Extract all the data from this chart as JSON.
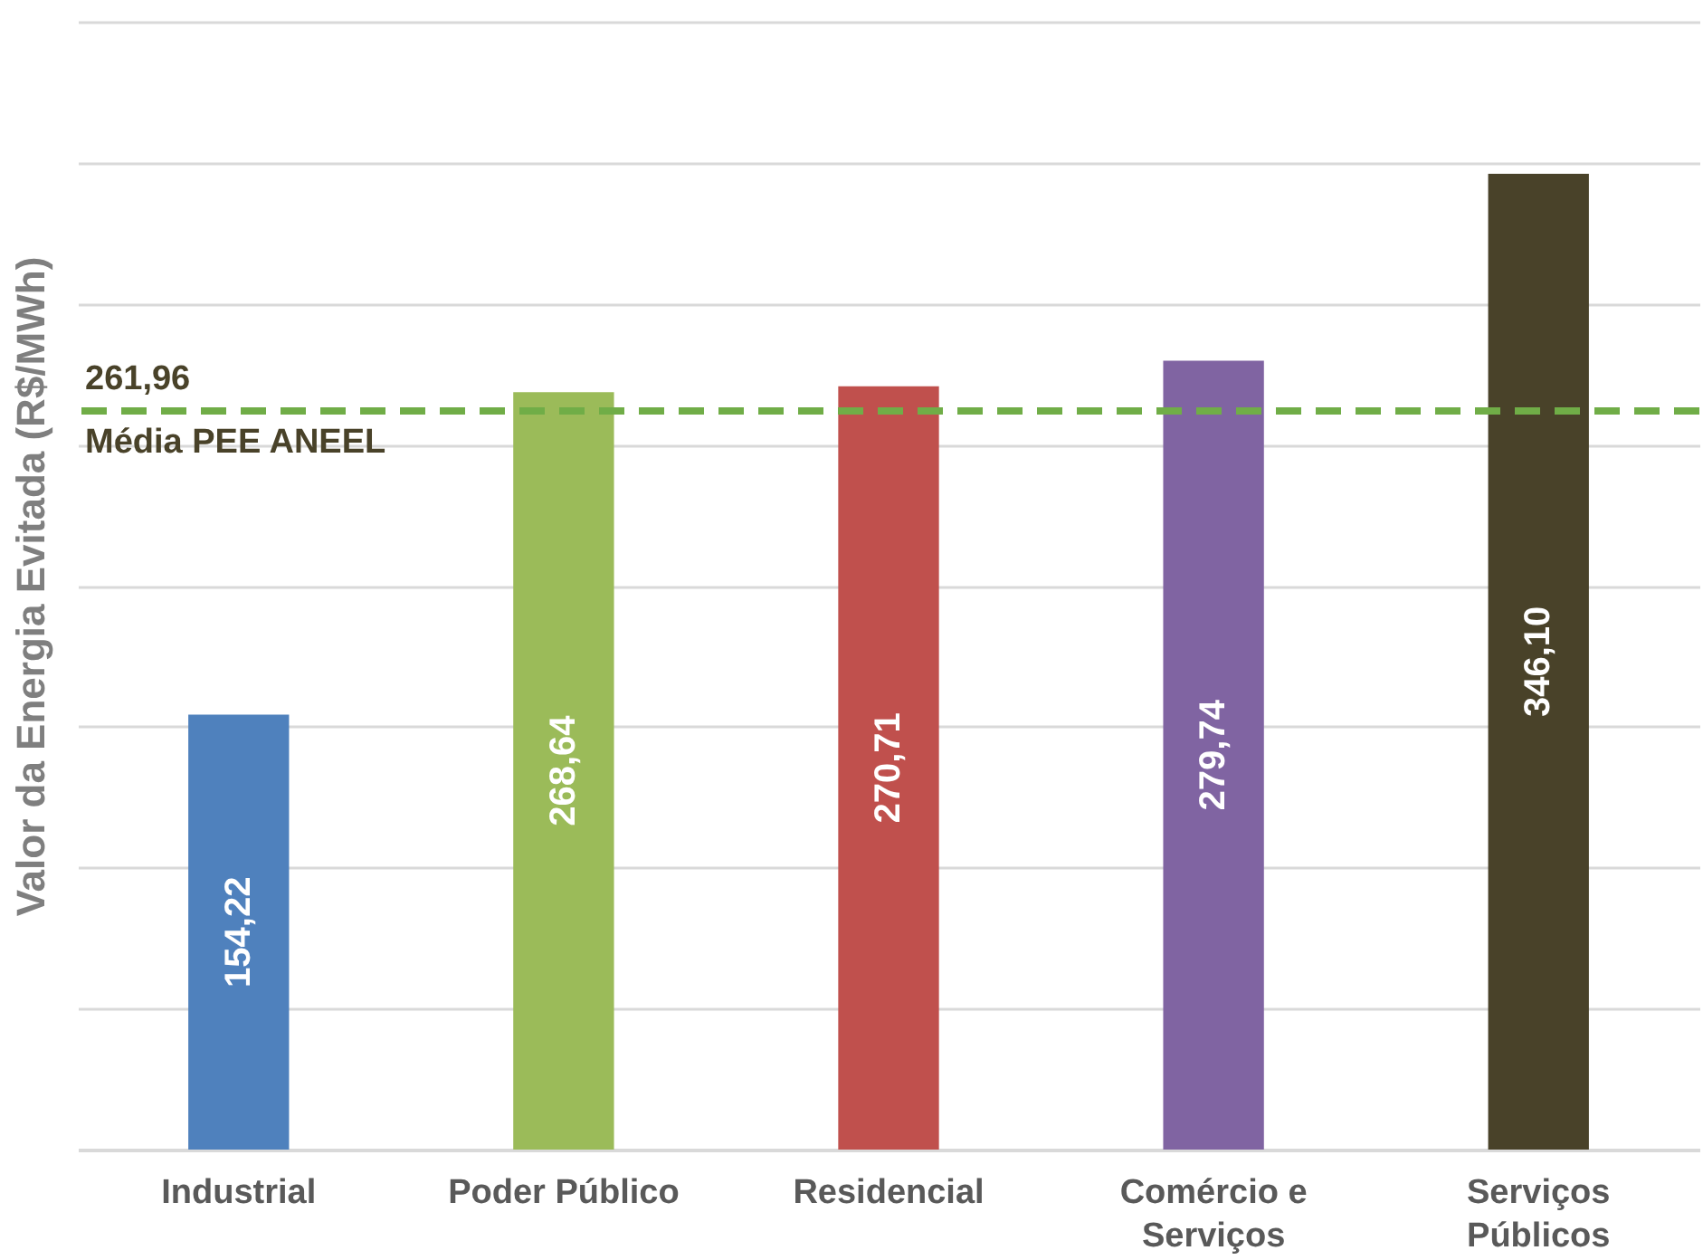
{
  "chart_data": {
    "type": "bar",
    "ylabel": "Valor da Energia Evitada (R$/MWh)",
    "categories": [
      "Industrial",
      "Poder Público",
      "Residencial",
      "Comércio e Serviços",
      "Serviços Públicos"
    ],
    "values": [
      154.22,
      268.64,
      270.71,
      279.74,
      346.1
    ],
    "value_labels": [
      "154,22",
      "268,64",
      "270,71",
      "279,74",
      "346,10"
    ],
    "colors": [
      "#4f81bd",
      "#9bbb59",
      "#c0504d",
      "#8064a2",
      "#494229"
    ],
    "ylim": [
      0,
      400
    ],
    "yticks": [
      {
        "value": 0,
        "label": null
      },
      {
        "value": 50,
        "label": null
      },
      {
        "value": 100,
        "label": null
      },
      {
        "value": 150,
        "label": null
      },
      {
        "value": 200,
        "label": null
      },
      {
        "value": 250,
        "label": null
      },
      {
        "value": 300,
        "label": null
      },
      {
        "value": 350,
        "label": null
      },
      {
        "value": 400,
        "label": null
      }
    ],
    "tick_labels": "x",
    "grid": "y",
    "ref_lines": [
      {
        "axis": "y",
        "value": 261.96,
        "label": "261,96",
        "color": "#70ad47",
        "line_style": "dashed"
      }
    ],
    "annotations": [
      {
        "text": "Média PEE ANEEL",
        "y": 261.96
      }
    ]
  }
}
